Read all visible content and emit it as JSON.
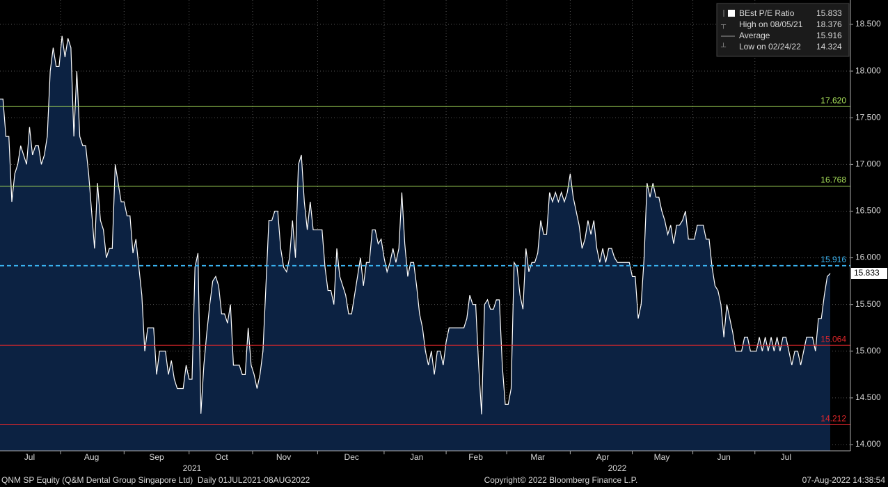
{
  "chart_data": {
    "type": "area",
    "series": [
      {
        "name": "BEst P/E Ratio",
        "color": "#ffffff",
        "fill": "#0c2242",
        "values": [
          17.7,
          17.7,
          17.3,
          17.3,
          16.6,
          16.9,
          17.0,
          17.2,
          17.1,
          17.0,
          17.4,
          17.1,
          17.2,
          17.2,
          17.0,
          17.1,
          17.3,
          18.0,
          18.25,
          18.05,
          18.05,
          18.376,
          18.15,
          18.35,
          18.25,
          17.3,
          18.0,
          17.3,
          17.2,
          17.2,
          16.9,
          16.5,
          16.1,
          16.8,
          16.4,
          16.3,
          16.0,
          16.1,
          16.1,
          17.0,
          16.8,
          16.6,
          16.6,
          16.45,
          16.45,
          16.05,
          16.2,
          15.9,
          15.6,
          15.0,
          15.25,
          15.25,
          15.25,
          14.75,
          15.0,
          15.0,
          15.0,
          14.75,
          14.9,
          14.7,
          14.6,
          14.6,
          14.6,
          14.85,
          14.7,
          14.7,
          15.9,
          16.05,
          14.33,
          14.85,
          15.2,
          15.5,
          15.75,
          15.8,
          15.7,
          15.4,
          15.4,
          15.3,
          15.5,
          14.85,
          14.85,
          14.85,
          14.75,
          14.75,
          15.25,
          14.85,
          14.75,
          14.6,
          14.75,
          15.0,
          15.7,
          16.4,
          16.4,
          16.5,
          16.5,
          16.1,
          15.9,
          15.85,
          16.0,
          16.4,
          16.0,
          17.0,
          17.1,
          16.6,
          16.3,
          16.6,
          16.3,
          16.3,
          16.3,
          16.3,
          15.9,
          15.65,
          15.65,
          15.5,
          16.1,
          15.8,
          15.7,
          15.6,
          15.4,
          15.4,
          15.6,
          15.8,
          16.0,
          15.7,
          15.95,
          15.95,
          16.3,
          16.3,
          16.15,
          16.2,
          16.0,
          15.85,
          15.95,
          16.1,
          15.95,
          16.1,
          16.7,
          16.15,
          15.8,
          15.95,
          15.95,
          15.7,
          15.4,
          15.25,
          15.0,
          14.85,
          15.0,
          14.75,
          15.0,
          15.0,
          14.85,
          15.1,
          15.25,
          15.25,
          15.25,
          15.25,
          15.25,
          15.25,
          15.35,
          15.6,
          15.5,
          15.5,
          14.85,
          14.324,
          15.5,
          15.55,
          15.45,
          15.45,
          15.55,
          15.55,
          14.85,
          14.43,
          14.43,
          14.6,
          15.95,
          15.9,
          15.6,
          15.45,
          16.1,
          15.85,
          15.95,
          15.95,
          16.05,
          16.4,
          16.25,
          16.25,
          16.7,
          16.6,
          16.7,
          16.6,
          16.7,
          16.6,
          16.7,
          16.9,
          16.65,
          16.5,
          16.35,
          16.1,
          16.2,
          16.4,
          16.25,
          16.4,
          16.1,
          15.95,
          16.1,
          15.95,
          16.1,
          16.1,
          16.0,
          15.95,
          15.95,
          15.95,
          15.95,
          15.95,
          15.8,
          15.8,
          15.35,
          15.5,
          16.0,
          16.8,
          16.65,
          16.8,
          16.65,
          16.65,
          16.5,
          16.4,
          16.25,
          16.35,
          16.15,
          16.35,
          16.35,
          16.4,
          16.5,
          16.2,
          16.2,
          16.2,
          16.35,
          16.35,
          16.35,
          16.2,
          16.2,
          15.9,
          15.7,
          15.65,
          15.5,
          15.15,
          15.5,
          15.35,
          15.2,
          15.0,
          15.0,
          15.0,
          15.15,
          15.15,
          15.0,
          15.0,
          15.0,
          15.15,
          15.0,
          15.15,
          15.0,
          15.15,
          15.0,
          15.15,
          15.0,
          15.15,
          15.15,
          15.0,
          14.85,
          15.0,
          15.0,
          14.85,
          15.0,
          15.15,
          15.15,
          15.15,
          15.0,
          15.35,
          15.35,
          15.6,
          15.8,
          15.833
        ]
      }
    ],
    "categories": [
      null,
      null,
      null,
      null,
      null,
      null,
      null,
      null,
      null,
      null,
      "Jul",
      null,
      null,
      null,
      null,
      null,
      null,
      null,
      null,
      null,
      null,
      null,
      null,
      null,
      null,
      null,
      null,
      null,
      null,
      null,
      null,
      "Aug",
      null,
      null,
      null,
      null,
      null,
      null,
      null,
      null,
      null,
      null,
      null,
      null,
      null,
      null,
      null,
      null,
      null,
      null,
      null,
      null,
      null,
      "Sep",
      null,
      null,
      null,
      null,
      null,
      null,
      null,
      null,
      null,
      null,
      null,
      null,
      null,
      null,
      null,
      null,
      null,
      null,
      null,
      null,
      null,
      "Oct",
      null,
      null,
      null,
      null,
      null,
      null,
      null,
      null,
      null,
      null,
      null,
      null,
      null,
      null,
      null,
      null,
      null,
      null,
      null,
      null,
      "Nov",
      null,
      null,
      null,
      null,
      null,
      null,
      null,
      null,
      null,
      null,
      null,
      null,
      null,
      null,
      null,
      null,
      null,
      null,
      null,
      null,
      null,
      null,
      "Dec",
      null,
      null,
      null,
      null,
      null,
      null,
      null,
      null,
      null,
      null,
      null,
      null,
      null,
      null,
      null,
      null,
      null,
      null,
      null,
      null,
      null,
      "Jan",
      null,
      null,
      null,
      null,
      null,
      null,
      null,
      null,
      null,
      null,
      null,
      null,
      null,
      null,
      null,
      null,
      null,
      null,
      null,
      "Feb",
      null,
      null,
      null,
      null,
      null,
      null,
      null,
      null,
      null,
      null,
      null,
      null,
      null,
      null,
      null,
      null,
      null,
      null,
      null,
      null,
      "Mar",
      null,
      null,
      null,
      null,
      null,
      null,
      null,
      null,
      null,
      null,
      null,
      null,
      null,
      null,
      null,
      null,
      null,
      null,
      null,
      null,
      null,
      "Apr",
      null,
      null,
      null,
      null,
      null,
      null,
      null,
      null,
      null,
      null,
      null,
      null,
      null,
      null,
      null,
      null,
      null,
      null,
      null,
      "May",
      null,
      null,
      null,
      null,
      null,
      null,
      null,
      null,
      null,
      null,
      null,
      null,
      null,
      null,
      null,
      null,
      null,
      null,
      null,
      null,
      "Jun",
      null,
      null,
      null,
      null,
      null,
      null,
      null,
      null,
      null,
      null,
      null,
      null,
      null,
      null,
      null,
      null,
      null,
      null,
      null,
      null,
      "Jul",
      null,
      null,
      null,
      null,
      null,
      null,
      null,
      null,
      null,
      null,
      null,
      null,
      null,
      null,
      null
    ],
    "years": [
      "2021",
      "2022"
    ],
    "ylim": [
      13.933,
      18.761
    ],
    "yticks": [
      {
        "value": 14,
        "label": "14.000"
      },
      {
        "value": 14.5,
        "label": "14.500"
      },
      {
        "value": 15,
        "label": "15.000"
      },
      {
        "value": 15.5,
        "label": "15.500"
      },
      {
        "value": 16,
        "label": "16.000"
      },
      {
        "value": 16.5,
        "label": "16.500"
      },
      {
        "value": 17,
        "label": "17.000"
      },
      {
        "value": 17.5,
        "label": "17.500"
      },
      {
        "value": 18,
        "label": "18.000"
      },
      {
        "value": 18.5,
        "label": "18.500"
      }
    ],
    "grid": true,
    "last_value": 15.833,
    "stats": [
      {
        "label": "High on 08/05/21",
        "value": 18.376
      },
      {
        "label": "Average",
        "value": 15.916
      },
      {
        "label": "Low on 02/24/22",
        "value": 14.324
      }
    ],
    "reference_lines": [
      {
        "value": {
          "value": 17.62,
          "label": "17.620"
        },
        "color": "#a8e05a",
        "dashed": false
      },
      {
        "value": 16.768,
        "color": "#a8e05a",
        "dashed": false
      },
      {
        "value": 15.916,
        "color": "#3ab4f2",
        "dashed": true
      },
      {
        "value": 15.064,
        "color": "#e0262b",
        "dashed": false
      },
      {
        "value": 14.212,
        "color": "#e0262b",
        "dashed": false
      }
    ],
    "source": "QNM SP Equity (Q&M Dental Group Singapore Ltd)  Daily 01JUL2021-08AUG2022",
    "copyright": "Copyright© 2022 Bloomberg Finance L.P.",
    "timestamp": "07-Aug-2022 14:38:54"
  }
}
